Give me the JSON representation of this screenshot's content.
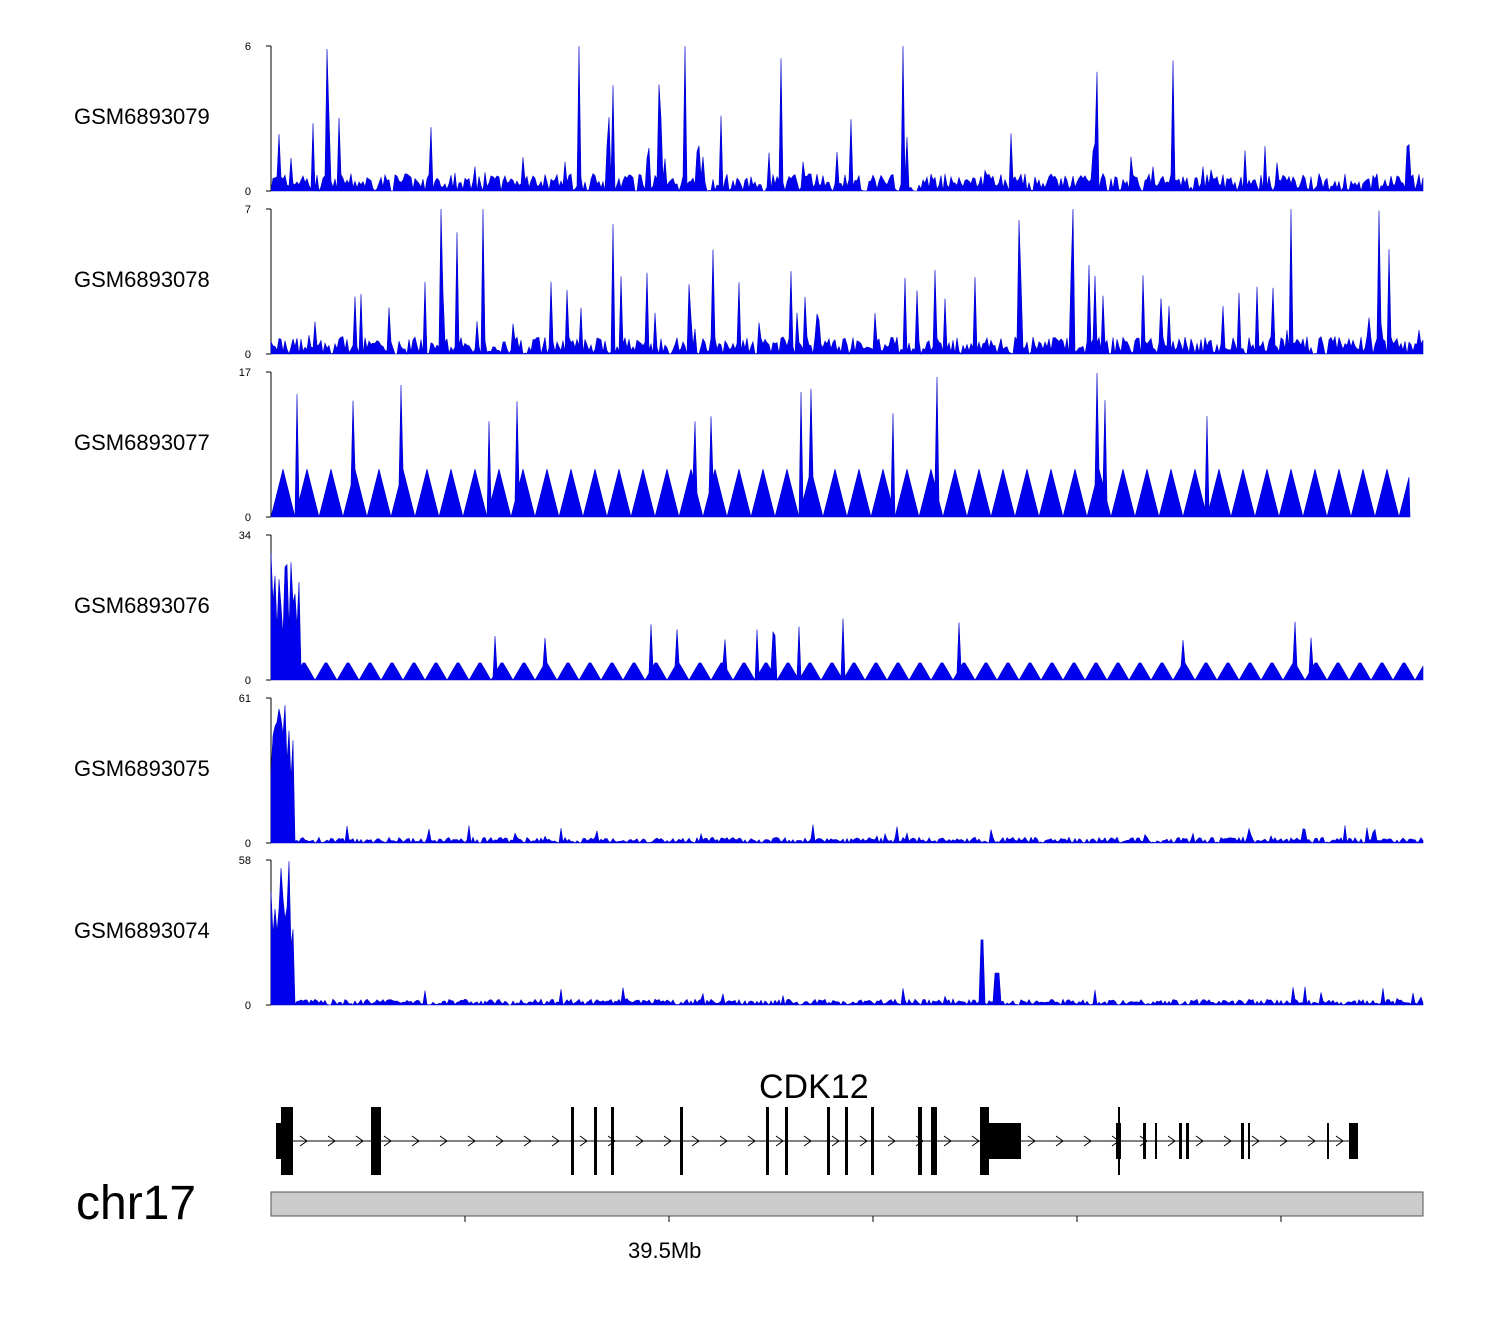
{
  "chart_data": {
    "type": "area",
    "chromosome": "chr17",
    "tracks": [
      {
        "name": "GSM6893079",
        "ylim": [
          0,
          6
        ]
      },
      {
        "name": "GSM6893078",
        "ylim": [
          0,
          7
        ]
      },
      {
        "name": "GSM6893077",
        "ylim": [
          0,
          17
        ]
      },
      {
        "name": "GSM6893076",
        "ylim": [
          0,
          34
        ]
      },
      {
        "name": "GSM6893075",
        "ylim": [
          0,
          61
        ]
      },
      {
        "name": "GSM6893074",
        "ylim": [
          0,
          58
        ]
      }
    ],
    "gene": {
      "name": "CDK12",
      "strand": "+"
    },
    "axis": {
      "tick_label": "39.5Mb"
    },
    "colors": {
      "signal": "#0000ee",
      "gene": "#000000",
      "ideogram": "#cccccc"
    }
  }
}
